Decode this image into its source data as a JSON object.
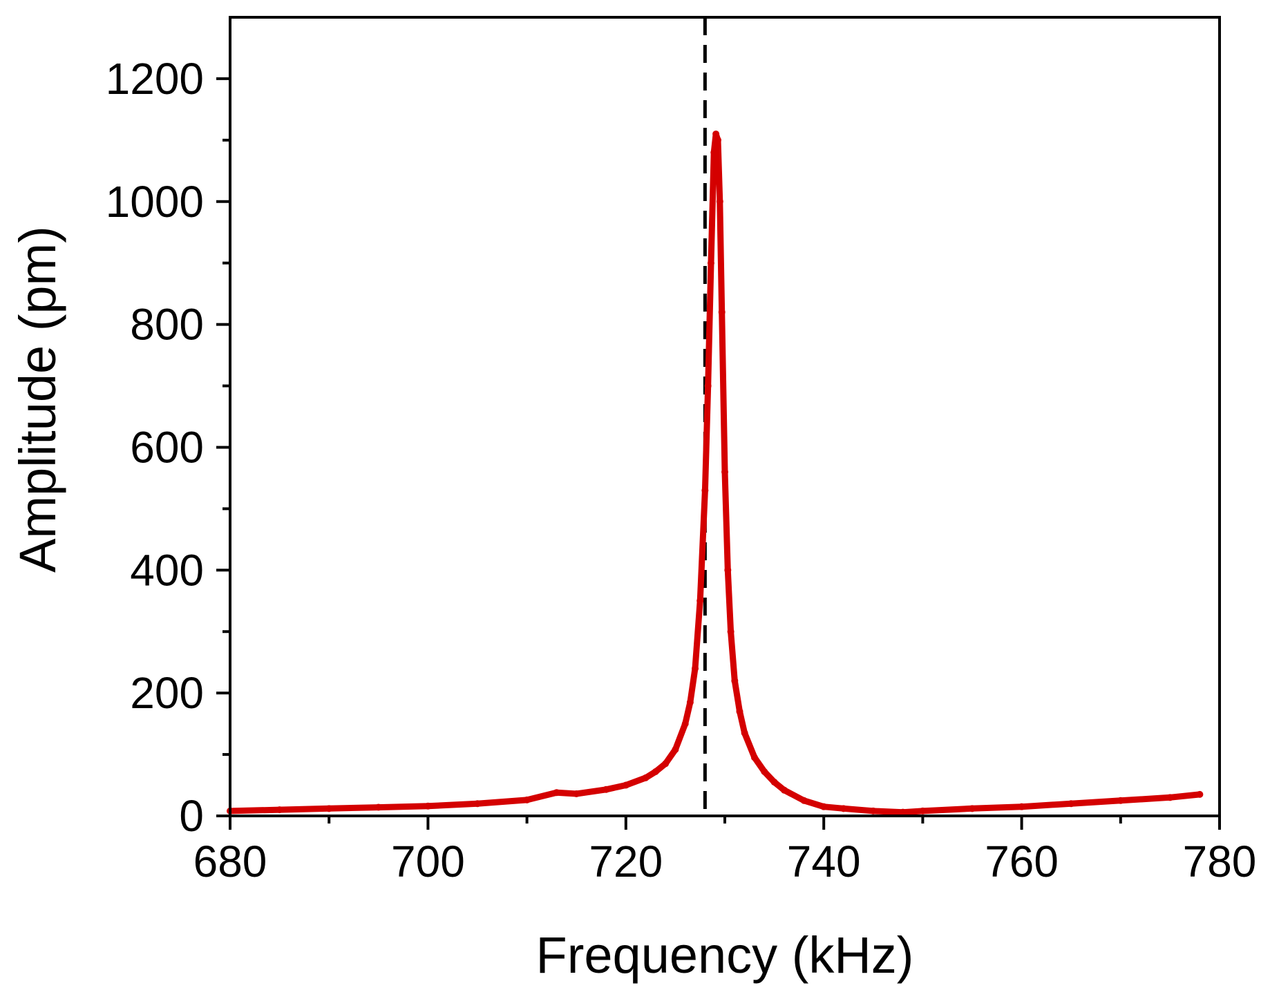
{
  "chart_data": {
    "type": "line",
    "xlabel": "Frequency (kHz)",
    "ylabel": "Amplitude (pm)",
    "xlim": [
      680,
      780
    ],
    "ylim": [
      0,
      1300
    ],
    "x_ticks": [
      680,
      700,
      720,
      740,
      760,
      780
    ],
    "x_tick_labels": [
      "680",
      "700",
      "720",
      "740",
      "760",
      "780"
    ],
    "x_minor_ticks": [
      690,
      710,
      730,
      750,
      770
    ],
    "y_ticks": [
      0,
      200,
      400,
      600,
      800,
      1000,
      1200
    ],
    "y_tick_labels": [
      "0",
      "200",
      "400",
      "600",
      "800",
      "1000",
      "1200"
    ],
    "y_minor_ticks": [
      100,
      300,
      500,
      700,
      900,
      1100
    ],
    "grid": false,
    "legend": "none",
    "series": [
      {
        "color": "#d40000",
        "x": [
          680,
          685,
          690,
          695,
          700,
          705,
          710,
          713,
          715,
          718,
          720,
          722,
          723,
          724,
          725,
          726,
          726.5,
          727,
          727.5,
          728,
          728.3,
          728.6,
          728.9,
          729.1,
          729.3,
          729.5,
          729.7,
          730,
          730.3,
          730.6,
          731,
          731.5,
          732,
          733,
          734,
          735,
          736,
          738,
          740,
          742,
          745,
          748,
          750,
          755,
          760,
          765,
          770,
          775,
          778
        ],
        "y": [
          8,
          10,
          12,
          14,
          16,
          20,
          26,
          38,
          36,
          43,
          50,
          62,
          72,
          85,
          108,
          150,
          185,
          240,
          350,
          530,
          700,
          900,
          1080,
          1110,
          1100,
          1000,
          820,
          560,
          400,
          300,
          220,
          170,
          135,
          95,
          72,
          55,
          42,
          25,
          15,
          12,
          8,
          6,
          8,
          12,
          15,
          20,
          25,
          30,
          35
        ]
      }
    ],
    "reference_lines": [
      {
        "orientation": "vertical",
        "x": 728,
        "style": "dashed",
        "color": "#000000"
      }
    ]
  }
}
